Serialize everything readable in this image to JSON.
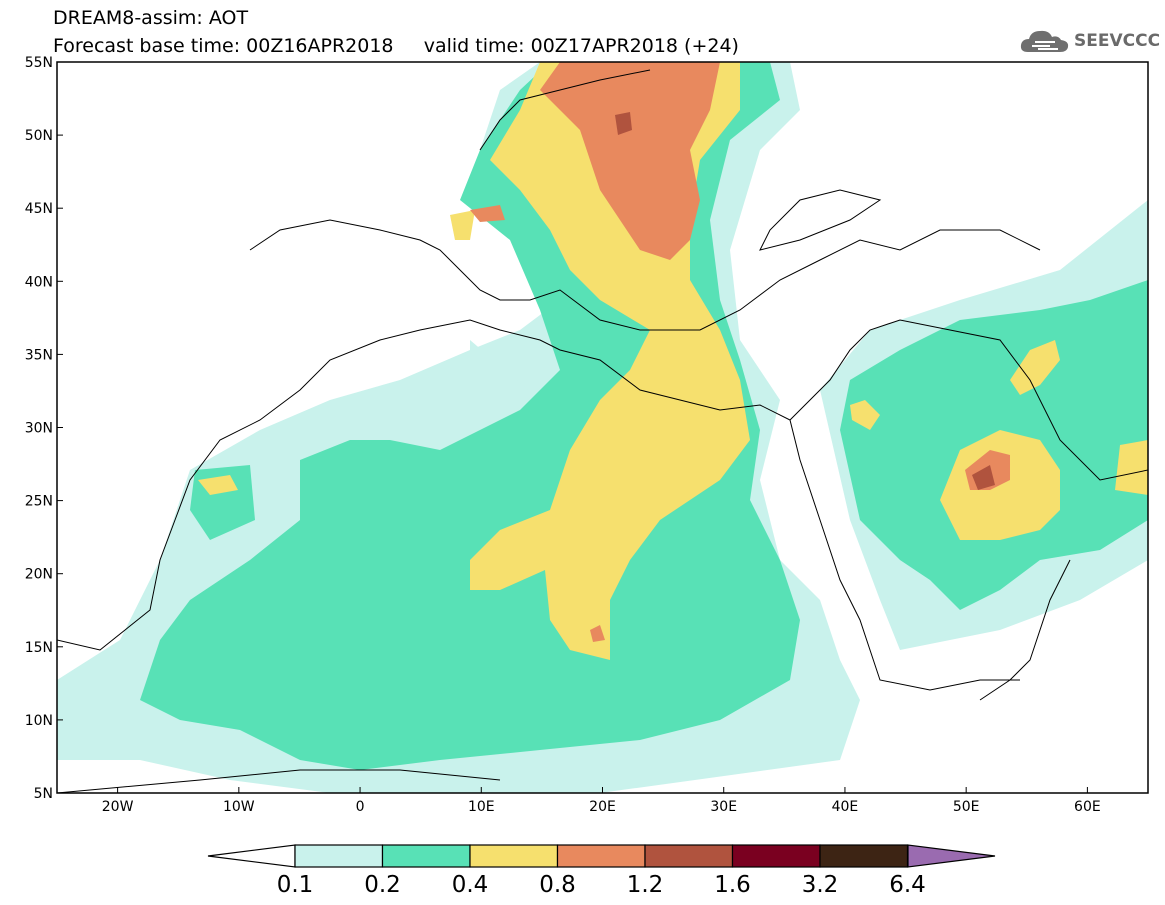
{
  "header": {
    "title_line1": "DREAM8-assim: AOT",
    "title_line2": "Forecast base time: 00Z16APR2018     valid time: 00Z17APR2018 (+24)",
    "logo_text": "SEEVCCC"
  },
  "map": {
    "lat_ticks": [
      {
        "value": 55,
        "label": "55N"
      },
      {
        "value": 50,
        "label": "50N"
      },
      {
        "value": 45,
        "label": "45N"
      },
      {
        "value": 40,
        "label": "40N"
      },
      {
        "value": 35,
        "label": "35N"
      },
      {
        "value": 30,
        "label": "30N"
      },
      {
        "value": 25,
        "label": "25N"
      },
      {
        "value": 20,
        "label": "20N"
      },
      {
        "value": 15,
        "label": "15N"
      },
      {
        "value": 10,
        "label": "10N"
      },
      {
        "value": 5,
        "label": "5N"
      }
    ],
    "lon_ticks": [
      {
        "value": -20,
        "label": "20W"
      },
      {
        "value": -10,
        "label": "10W"
      },
      {
        "value": 0,
        "label": "0"
      },
      {
        "value": 10,
        "label": "10E"
      },
      {
        "value": 20,
        "label": "20E"
      },
      {
        "value": 30,
        "label": "30E"
      },
      {
        "value": 40,
        "label": "40E"
      },
      {
        "value": 50,
        "label": "50E"
      },
      {
        "value": 60,
        "label": "60E"
      }
    ],
    "lon_range": [
      -25,
      65
    ],
    "lat_range": [
      5,
      55
    ]
  },
  "legend": {
    "colors": [
      "#c9f2ec",
      "#58e1b6",
      "#f6e06e",
      "#e8895e",
      "#b0533e",
      "#7a0020",
      "#3d2414",
      "#9a6bb0"
    ],
    "under_color": "#ffffff",
    "labels": [
      "0.1",
      "0.2",
      "0.4",
      "0.8",
      "1.2",
      "1.6",
      "3.2",
      "6.4"
    ]
  }
}
